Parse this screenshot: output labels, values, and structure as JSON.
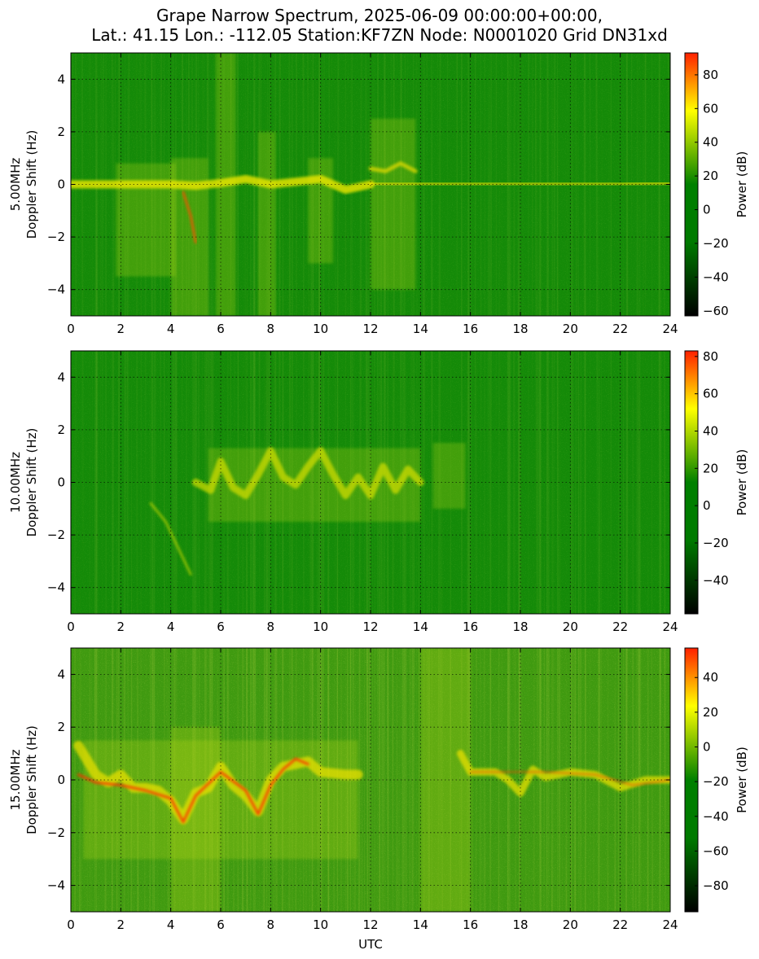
{
  "title_line1": "Grape Narrow Spectrum, 2025-06-09 00:00:00+00:00,",
  "title_line2": "Lat.: 41.15 Lon.: -112.05 Station:KF7ZN Node: N0001020 Grid DN31xd",
  "colors": {
    "low": "#000000",
    "mid_low": "#007A00",
    "mid": "#008000",
    "high_mid": "#ffff00",
    "high": "#ff2000"
  },
  "chart_data": [
    {
      "type": "heatmap",
      "frequency_label": "5.00MHz",
      "ylabel": "Doppler Shift (Hz)",
      "xlabel": "",
      "xlim": [
        0,
        24
      ],
      "ylim": [
        -5,
        5
      ],
      "x_ticks": [
        0,
        2,
        4,
        6,
        8,
        10,
        12,
        14,
        16,
        18,
        20,
        22,
        24
      ],
      "y_ticks": [
        -4,
        -2,
        0,
        2,
        4
      ],
      "y_tick_labels": [
        "−4",
        "−2",
        "0",
        "2",
        "4"
      ],
      "colorbar": {
        "label": "Power (dB)",
        "range": [
          -63,
          93
        ],
        "ticks": [
          -60,
          -40,
          -20,
          0,
          20,
          40,
          60,
          80
        ],
        "tick_labels": [
          "−60",
          "−40",
          "−20",
          "0",
          "20",
          "40",
          "60",
          "80"
        ]
      },
      "grid": true
    },
    {
      "type": "heatmap",
      "frequency_label": "10.00MHz",
      "ylabel": "Doppler Shift (Hz)",
      "xlabel": "",
      "xlim": [
        0,
        24
      ],
      "ylim": [
        -5,
        5
      ],
      "x_ticks": [
        0,
        2,
        4,
        6,
        8,
        10,
        12,
        14,
        16,
        18,
        20,
        22,
        24
      ],
      "y_ticks": [
        -4,
        -2,
        0,
        2,
        4
      ],
      "y_tick_labels": [
        "−4",
        "−2",
        "0",
        "2",
        "4"
      ],
      "colorbar": {
        "label": "Power (dB)",
        "range": [
          -58,
          83
        ],
        "ticks": [
          -40,
          -20,
          0,
          20,
          40,
          60,
          80
        ],
        "tick_labels": [
          "−40",
          "−20",
          "0",
          "20",
          "40",
          "60",
          "80"
        ]
      },
      "grid": true
    },
    {
      "type": "heatmap",
      "frequency_label": "15.00MHz",
      "ylabel": "Doppler Shift (Hz)",
      "xlabel": "UTC",
      "xlim": [
        0,
        24
      ],
      "ylim": [
        -5,
        5
      ],
      "x_ticks": [
        0,
        2,
        4,
        6,
        8,
        10,
        12,
        14,
        16,
        18,
        20,
        22,
        24
      ],
      "y_ticks": [
        -4,
        -2,
        0,
        2,
        4
      ],
      "y_tick_labels": [
        "−4",
        "−2",
        "0",
        "2",
        "4"
      ],
      "colorbar": {
        "label": "Power (dB)",
        "range": [
          -95,
          57
        ],
        "ticks": [
          -80,
          -60,
          -40,
          -20,
          0,
          20,
          40
        ],
        "tick_labels": [
          "−80",
          "−60",
          "−40",
          "−20",
          "0",
          "20",
          "40"
        ]
      },
      "grid": true
    }
  ]
}
